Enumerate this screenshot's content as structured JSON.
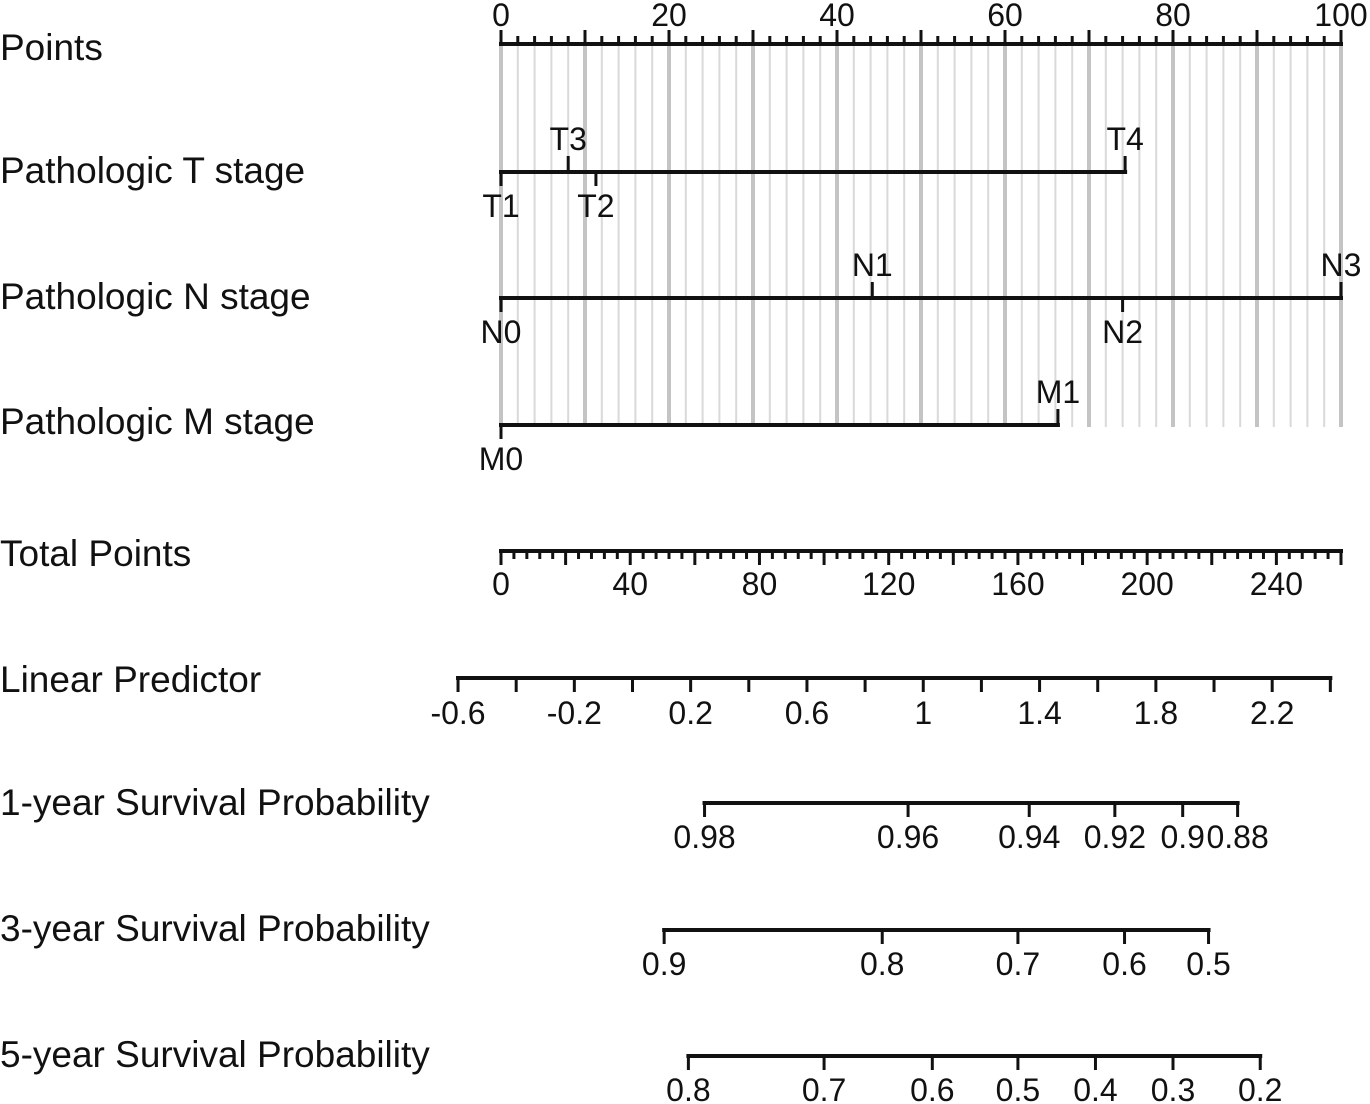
{
  "chart_data": {
    "type": "nomogram",
    "rows": [
      {
        "id": "points",
        "label": "Points",
        "kind": "axis",
        "min": 0,
        "max": 100,
        "major": [
          0,
          20,
          40,
          60,
          80,
          100
        ],
        "minor_step": 2,
        "labels_above": true
      },
      {
        "id": "t-stage",
        "label": "Pathologic T stage",
        "kind": "variable",
        "levels": [
          {
            "name": "T1",
            "points": 0,
            "pos": "below"
          },
          {
            "name": "T3",
            "points": 8,
            "pos": "above"
          },
          {
            "name": "T2",
            "points": 11.3,
            "pos": "below"
          },
          {
            "name": "T4",
            "points": 74.3,
            "pos": "above"
          }
        ]
      },
      {
        "id": "n-stage",
        "label": "Pathologic N stage",
        "kind": "variable",
        "levels": [
          {
            "name": "N0",
            "points": 0,
            "pos": "below"
          },
          {
            "name": "N1",
            "points": 44.2,
            "pos": "above"
          },
          {
            "name": "N2",
            "points": 74,
            "pos": "below"
          },
          {
            "name": "N3",
            "points": 100,
            "pos": "above"
          }
        ]
      },
      {
        "id": "m-stage",
        "label": "Pathologic M stage",
        "kind": "variable",
        "levels": [
          {
            "name": "M0",
            "points": 0,
            "pos": "below"
          },
          {
            "name": "M1",
            "points": 66.3,
            "pos": "above"
          }
        ]
      },
      {
        "id": "total-points",
        "label": "Total Points",
        "kind": "axis",
        "min": 0,
        "max": 260,
        "major": [
          0,
          40,
          80,
          120,
          160,
          200,
          240
        ],
        "minor_step": 4,
        "mid_step": 20,
        "labels_above": false
      },
      {
        "id": "linear-predictor",
        "label": "Linear Predictor",
        "kind": "axis",
        "min": -0.6,
        "max": 2.4,
        "major": [
          -0.6,
          -0.2,
          0.2,
          0.6,
          1,
          1.4,
          1.8,
          2.2
        ],
        "major_text": [
          "-0.6",
          "-0.2",
          "0.2",
          "0.6",
          "1",
          "1.4",
          "1.8",
          "2.2"
        ],
        "minor_step": 0.2,
        "total_points_at_min": -13.3,
        "total_points_at_max": 256.7,
        "labels_above": false
      },
      {
        "id": "survival-1y",
        "label": "1-year Survival Probability",
        "kind": "prob",
        "ticks": [
          {
            "text": "0.98",
            "total_points": 63
          },
          {
            "text": "0.96",
            "total_points": 126
          },
          {
            "text": "0.94",
            "total_points": 163.5
          },
          {
            "text": "0.92",
            "total_points": 190
          },
          {
            "text": "0.9",
            "total_points": 211
          },
          {
            "text": "0.88",
            "total_points": 228
          }
        ]
      },
      {
        "id": "survival-3y",
        "label": "3-year Survival Probability",
        "kind": "prob",
        "ticks": [
          {
            "text": "0.9",
            "total_points": 50.5
          },
          {
            "text": "0.8",
            "total_points": 118
          },
          {
            "text": "0.7",
            "total_points": 160
          },
          {
            "text": "0.6",
            "total_points": 193
          },
          {
            "text": "0.5",
            "total_points": 219
          }
        ]
      },
      {
        "id": "survival-5y",
        "label": "5-year Survival Probability",
        "kind": "prob",
        "ticks": [
          {
            "text": "0.8",
            "total_points": 58
          },
          {
            "text": "0.7",
            "total_points": 100
          },
          {
            "text": "0.6",
            "total_points": 133.5
          },
          {
            "text": "0.5",
            "total_points": 160
          },
          {
            "text": "0.4",
            "total_points": 184
          },
          {
            "text": "0.3",
            "total_points": 208
          },
          {
            "text": "0.2",
            "total_points": 235
          }
        ]
      }
    ]
  }
}
